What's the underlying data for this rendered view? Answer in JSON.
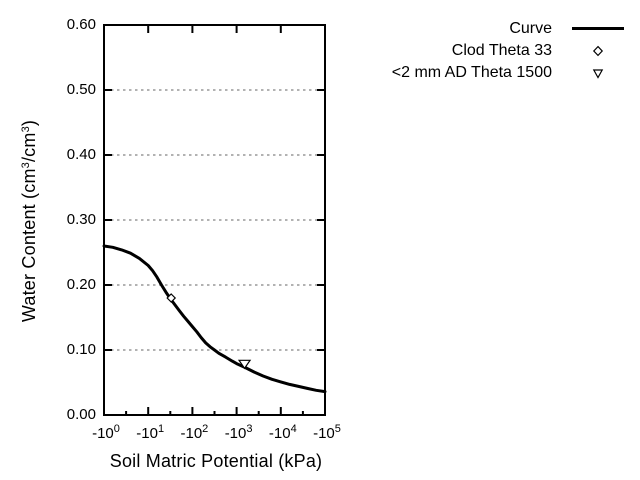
{
  "figure": {
    "xlabel": "Soil Matric Potential (kPa)",
    "ylabel_parts": {
      "pre": "Water Content (cm",
      "sup1": "3",
      "mid": "/cm",
      "sup2": "3",
      "post": ")"
    },
    "legend": {
      "position": "outside top right",
      "items": [
        {
          "label": "Curve",
          "marker": "line"
        },
        {
          "label": "Clod Theta 33",
          "marker": "diamond-open"
        },
        {
          "label": "<2 mm AD Theta 1500",
          "marker": "triangle-down-open"
        }
      ]
    },
    "colors": {
      "curve": "#000000",
      "grid": "#999999",
      "background": "#ffffff",
      "axis": "#000000"
    }
  },
  "chart_data": {
    "type": "line",
    "title": "",
    "xlabel": "Soil Matric Potential (kPa)",
    "ylabel": "Water Content (cm3/cm3)",
    "x_axis": {
      "scale": "negative log10 (kPa)",
      "range_log10": [
        0,
        5
      ],
      "tick_log10": [
        0,
        1,
        2,
        3,
        4,
        5
      ],
      "tick_labels": [
        {
          "base": "-10",
          "exp": "0"
        },
        {
          "base": "-10",
          "exp": "1"
        },
        {
          "base": "-10",
          "exp": "2"
        },
        {
          "base": "-10",
          "exp": "3"
        },
        {
          "base": "-10",
          "exp": "4"
        },
        {
          "base": "-10",
          "exp": "5"
        }
      ],
      "minor_tick_log10": [
        0.5,
        1.5,
        2.5,
        3.5,
        4.5
      ]
    },
    "y_axis": {
      "range": [
        0.0,
        0.6
      ],
      "ticks": [
        0.0,
        0.1,
        0.2,
        0.3,
        0.4,
        0.5,
        0.6
      ],
      "tick_labels": [
        "0.00",
        "0.10",
        "0.20",
        "0.30",
        "0.40",
        "0.50",
        "0.60"
      ]
    },
    "grid": {
      "horizontal_at": [
        0.1,
        0.2,
        0.3,
        0.4,
        0.5
      ],
      "style": "dotted",
      "color": "#999999"
    },
    "legend_position": "outside top right",
    "series": [
      {
        "name": "Curve",
        "type": "line",
        "color": "#000000",
        "x_log10": [
          0,
          0.2,
          0.4,
          0.6,
          0.8,
          1.0,
          1.1,
          1.2,
          1.3,
          1.4,
          1.5,
          1.6,
          1.7,
          1.8,
          1.9,
          2.0,
          2.1,
          2.2,
          2.3,
          2.4,
          2.5,
          2.6,
          2.75,
          2.9,
          3.0,
          3.2,
          3.4,
          3.6,
          3.8,
          4.0,
          4.2,
          4.4,
          4.6,
          4.8,
          5.0
        ],
        "y": [
          0.26,
          0.258,
          0.254,
          0.249,
          0.241,
          0.23,
          0.222,
          0.212,
          0.2,
          0.189,
          0.179,
          0.17,
          0.161,
          0.152,
          0.144,
          0.136,
          0.128,
          0.119,
          0.111,
          0.105,
          0.1,
          0.095,
          0.089,
          0.083,
          0.079,
          0.073,
          0.066,
          0.06,
          0.055,
          0.051,
          0.047,
          0.044,
          0.041,
          0.038,
          0.036
        ]
      },
      {
        "name": "Clod Theta 33",
        "type": "scatter",
        "marker": "diamond-open",
        "points": [
          {
            "kPa": -33,
            "x_log10": 1.52,
            "theta": 0.18
          }
        ]
      },
      {
        "name": "<2 mm AD Theta 1500",
        "type": "scatter",
        "marker": "triangle-down-open",
        "points": [
          {
            "kPa": -1500,
            "x_log10": 3.18,
            "theta": 0.078
          }
        ]
      }
    ]
  }
}
